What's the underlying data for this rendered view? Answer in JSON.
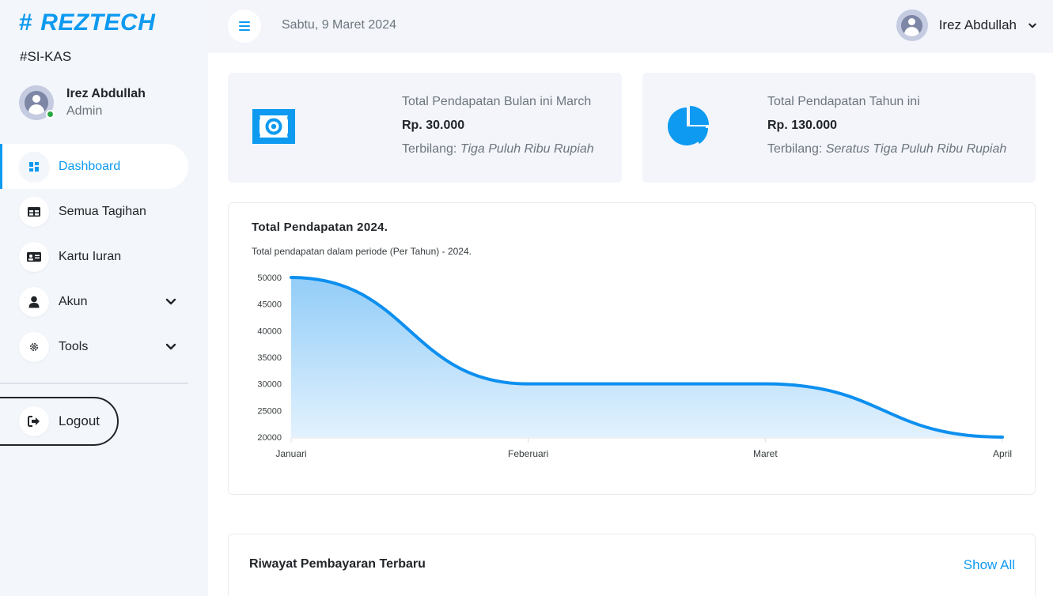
{
  "sidebar": {
    "logo_text": "REZTECH",
    "logo_hash": "#",
    "app_subtitle": "#SI-KAS",
    "profile": {
      "name": "Irez Abdullah",
      "role": "Admin"
    },
    "items": [
      {
        "label": "Dashboard",
        "icon": "grid-icon",
        "active": true
      },
      {
        "label": "Semua Tagihan",
        "icon": "table-icon"
      },
      {
        "label": "Kartu Iuran",
        "icon": "id-card-icon"
      },
      {
        "label": "Akun",
        "icon": "user-icon",
        "has_submenu": true
      },
      {
        "label": "Tools",
        "icon": "gear-icon",
        "has_submenu": true
      }
    ],
    "logout_label": "Logout"
  },
  "header": {
    "date": "Sabtu, 9 Maret 2024",
    "user_name": "Irez Abdullah"
  },
  "stats": [
    {
      "label": "Total Pendapatan Bulan ini March",
      "value": "Rp. 30.000",
      "words_prefix": "Terbilang:",
      "words": "Tiga Puluh Ribu Rupiah",
      "icon": "money-icon"
    },
    {
      "label": "Total Pendapatan Tahun ini",
      "value": "Rp. 130.000",
      "words_prefix": "Terbilang:",
      "words": "Seratus Tiga Puluh Ribu Rupiah",
      "icon": "pie-chart-icon"
    }
  ],
  "chart_data": {
    "type": "area",
    "title": "Total Pendapatan 2024.",
    "subtitle": "Total pendapatan dalam periode (Per Tahun) - 2024.",
    "categories": [
      "Januari",
      "Feberuari",
      "Maret",
      "April"
    ],
    "series": [
      {
        "values": [
          50000,
          30000,
          30000,
          20000
        ]
      }
    ],
    "ylim": [
      20000,
      50000
    ],
    "yticks": [
      50000,
      45000,
      40000,
      35000,
      30000,
      25000,
      20000
    ],
    "color": "#0d8fef"
  },
  "history": {
    "title": "Riwayat Pembayaran Terbaru",
    "show_all": "Show All"
  },
  "colors": {
    "accent": "#0d9af0",
    "background": "#f3f5fb"
  }
}
